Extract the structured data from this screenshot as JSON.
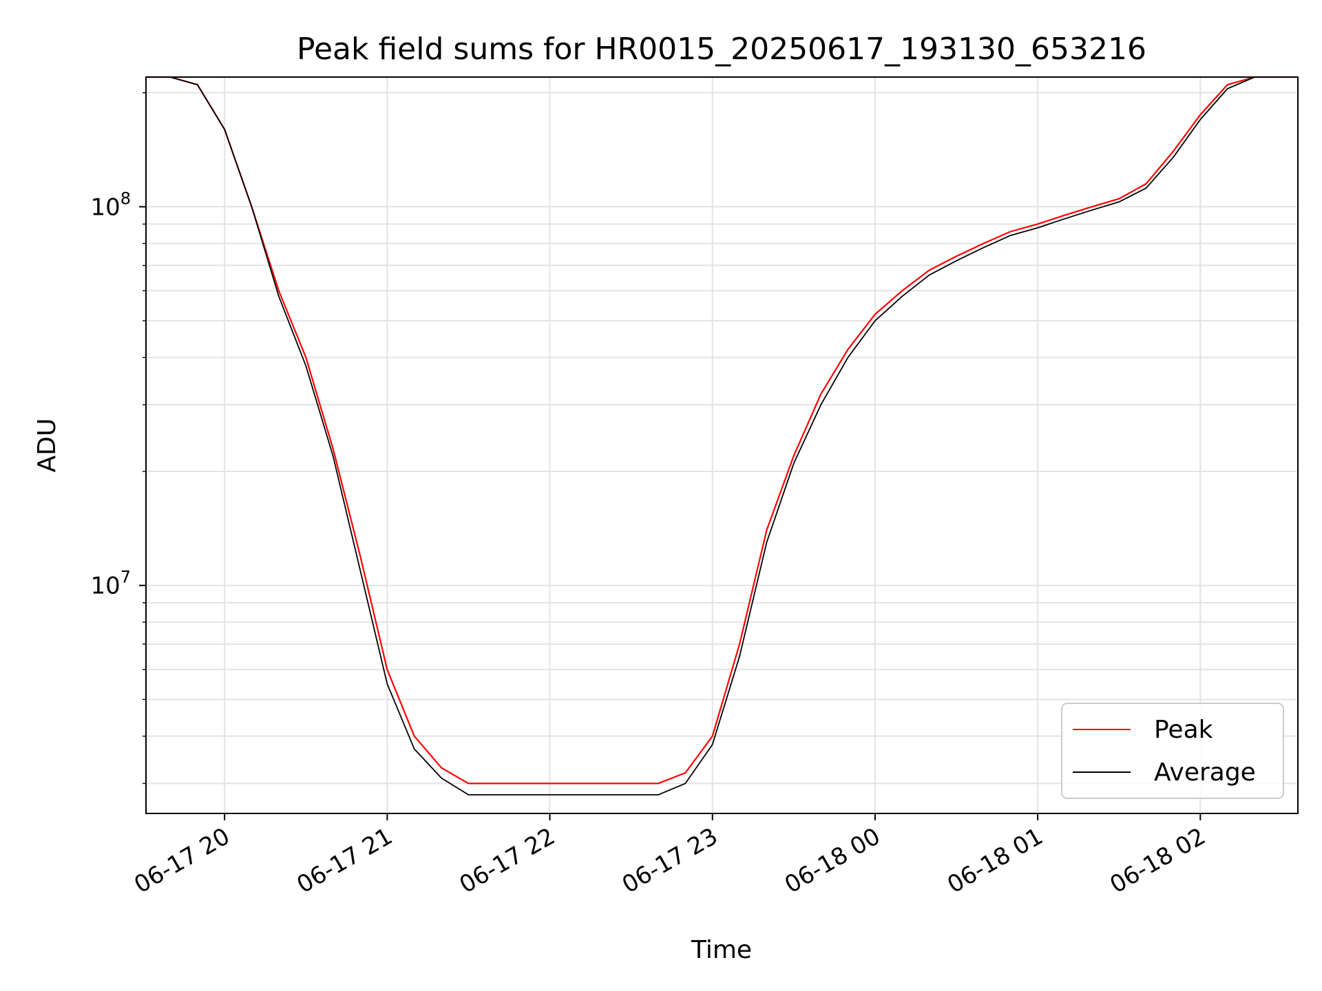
{
  "chart_data": {
    "type": "line",
    "title": "Peak field sums for HR0015_20250617_193130_653216",
    "xlabel": "Time",
    "ylabel": "ADU",
    "yscale": "log",
    "xlim": [
      "2025-06-17 19:31",
      "2025-06-18 02:36"
    ],
    "ylim": [
      2500000,
      220000000
    ],
    "x_ticks": [
      "06-17 20",
      "06-17 21",
      "06-17 22",
      "06-17 23",
      "06-18 00",
      "06-18 01",
      "06-18 02"
    ],
    "y_ticks": [
      "10^7",
      "10^8"
    ],
    "grid": true,
    "legend_position": "lower-right",
    "series": [
      {
        "name": "Peak",
        "color": "#ff0000",
        "x": [
          "2025-06-17 19:31",
          "2025-06-17 19:40",
          "2025-06-17 19:50",
          "2025-06-17 20:00",
          "2025-06-17 20:10",
          "2025-06-17 20:20",
          "2025-06-17 20:30",
          "2025-06-17 20:40",
          "2025-06-17 20:50",
          "2025-06-17 21:00",
          "2025-06-17 21:10",
          "2025-06-17 21:20",
          "2025-06-17 21:30",
          "2025-06-17 21:40",
          "2025-06-17 21:50",
          "2025-06-17 22:00",
          "2025-06-17 22:10",
          "2025-06-17 22:20",
          "2025-06-17 22:30",
          "2025-06-17 22:40",
          "2025-06-17 22:50",
          "2025-06-17 23:00",
          "2025-06-17 23:10",
          "2025-06-17 23:20",
          "2025-06-17 23:30",
          "2025-06-17 23:40",
          "2025-06-17 23:50",
          "2025-06-18 00:00",
          "2025-06-18 00:10",
          "2025-06-18 00:20",
          "2025-06-18 00:30",
          "2025-06-18 00:40",
          "2025-06-18 00:50",
          "2025-06-18 01:00",
          "2025-06-18 01:10",
          "2025-06-18 01:20",
          "2025-06-18 01:30",
          "2025-06-18 01:40",
          "2025-06-18 01:50",
          "2025-06-18 02:00",
          "2025-06-18 02:10",
          "2025-06-18 02:20",
          "2025-06-18 02:30",
          "2025-06-18 02:36"
        ],
        "values": [
          220000000,
          220000000,
          210000000,
          160000000,
          100000000,
          60000000,
          40000000,
          23000000,
          12000000,
          6000000,
          4000000,
          3300000,
          3000000,
          3000000,
          3000000,
          3000000,
          3000000,
          3000000,
          3000000,
          3000000,
          3200000,
          4000000,
          7000000,
          14000000,
          22000000,
          32000000,
          42000000,
          52000000,
          60000000,
          68000000,
          74000000,
          80000000,
          86000000,
          90000000,
          95000000,
          100000000,
          105000000,
          115000000,
          140000000,
          175000000,
          210000000,
          220000000,
          220000000,
          220000000
        ]
      },
      {
        "name": "Average",
        "color": "#000000",
        "x": [
          "2025-06-17 19:31",
          "2025-06-17 19:40",
          "2025-06-17 19:50",
          "2025-06-17 20:00",
          "2025-06-17 20:10",
          "2025-06-17 20:20",
          "2025-06-17 20:30",
          "2025-06-17 20:40",
          "2025-06-17 20:50",
          "2025-06-17 21:00",
          "2025-06-17 21:10",
          "2025-06-17 21:20",
          "2025-06-17 21:30",
          "2025-06-17 21:40",
          "2025-06-17 21:50",
          "2025-06-17 22:00",
          "2025-06-17 22:10",
          "2025-06-17 22:20",
          "2025-06-17 22:30",
          "2025-06-17 22:40",
          "2025-06-17 22:50",
          "2025-06-17 23:00",
          "2025-06-17 23:10",
          "2025-06-17 23:20",
          "2025-06-17 23:30",
          "2025-06-17 23:40",
          "2025-06-17 23:50",
          "2025-06-18 00:00",
          "2025-06-18 00:10",
          "2025-06-18 00:20",
          "2025-06-18 00:30",
          "2025-06-18 00:40",
          "2025-06-18 00:50",
          "2025-06-18 01:00",
          "2025-06-18 01:10",
          "2025-06-18 01:20",
          "2025-06-18 01:30",
          "2025-06-18 01:40",
          "2025-06-18 01:50",
          "2025-06-18 02:00",
          "2025-06-18 02:10",
          "2025-06-18 02:20",
          "2025-06-18 02:30",
          "2025-06-18 02:36"
        ],
        "values": [
          220000000,
          220000000,
          210000000,
          160000000,
          100000000,
          58000000,
          38000000,
          22000000,
          11000000,
          5500000,
          3700000,
          3100000,
          2800000,
          2800000,
          2800000,
          2800000,
          2800000,
          2800000,
          2800000,
          2800000,
          3000000,
          3800000,
          6500000,
          13000000,
          21000000,
          30000000,
          40000000,
          50000000,
          58000000,
          66000000,
          72000000,
          78000000,
          84000000,
          88000000,
          93000000,
          98000000,
          103000000,
          112000000,
          135000000,
          170000000,
          205000000,
          220000000,
          220000000,
          220000000
        ]
      }
    ]
  }
}
